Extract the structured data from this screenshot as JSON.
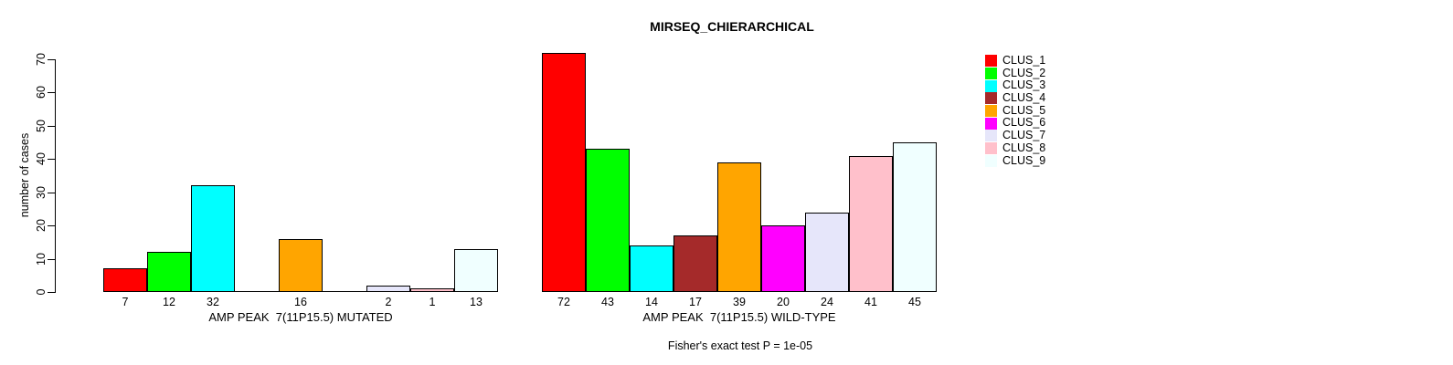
{
  "chart_data": {
    "type": "bar",
    "title": "MIRSEQ_CHIERARCHICAL",
    "ylabel": "number of cases",
    "ylim": [
      0,
      70
    ],
    "yticks": [
      0,
      10,
      20,
      30,
      40,
      50,
      60,
      70
    ],
    "grid": false,
    "legend_position": "right",
    "annotation": "Fisher's exact test P = 1e-05",
    "categories": [
      "AMP PEAK  7(11P15.5) MUTATED",
      "AMP PEAK  7(11P15.5) WILD-TYPE"
    ],
    "series": [
      {
        "name": "CLUS_1",
        "color": "#FF0000",
        "values": [
          7,
          72
        ]
      },
      {
        "name": "CLUS_2",
        "color": "#00FF00",
        "values": [
          12,
          43
        ]
      },
      {
        "name": "CLUS_3",
        "color": "#00FFFF",
        "values": [
          32,
          14
        ]
      },
      {
        "name": "CLUS_4",
        "color": "#A52A2A",
        "values": [
          0,
          17
        ]
      },
      {
        "name": "CLUS_5",
        "color": "#FFA500",
        "values": [
          16,
          39
        ]
      },
      {
        "name": "CLUS_6",
        "color": "#FF00FF",
        "values": [
          0,
          20
        ]
      },
      {
        "name": "CLUS_7",
        "color": "#E6E6FA",
        "values": [
          2,
          24
        ]
      },
      {
        "name": "CLUS_8",
        "color": "#FFC0CB",
        "values": [
          1,
          41
        ]
      },
      {
        "name": "CLUS_9",
        "color": "#F0FFFF",
        "values": [
          13,
          45
        ]
      }
    ],
    "axis_color": "#000000",
    "bar_border_color": "#000000"
  }
}
